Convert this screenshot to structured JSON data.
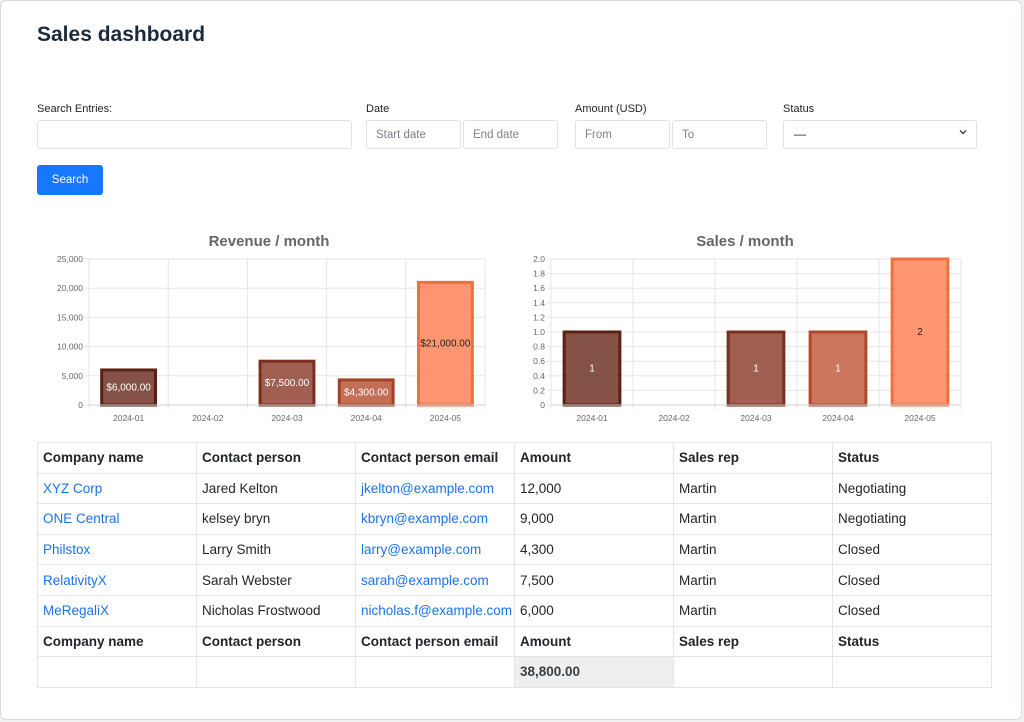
{
  "page": {
    "title": "Sales dashboard"
  },
  "filters": {
    "search": {
      "label": "Search Entries:",
      "value": "",
      "placeholder": ""
    },
    "date": {
      "label": "Date",
      "start_placeholder": "Start date",
      "end_placeholder": "End date"
    },
    "amount": {
      "label": "Amount (USD)",
      "from_placeholder": "From",
      "to_placeholder": "To"
    },
    "status": {
      "label": "Status",
      "selected": "—"
    },
    "search_button": "Search"
  },
  "chart_data": [
    {
      "type": "bar",
      "title": "Revenue / month",
      "categories": [
        "2024-01",
        "2024-02",
        "2024-03",
        "2024-04",
        "2024-05"
      ],
      "values": [
        6000,
        0,
        7500,
        4300,
        21000
      ],
      "data_labels": [
        "$6,000.00",
        "",
        "$7,500.00",
        "$4,300.00",
        "$21,000.00"
      ],
      "yticks": [
        "0",
        "5,000",
        "10,000",
        "15,000",
        "20,000",
        "25,000"
      ],
      "ylim": [
        0,
        25000
      ],
      "colors": [
        "#6e3426",
        "#000000",
        "#8f4331",
        "#b9553a",
        "#ff8458"
      ],
      "label_colors": [
        "#ffffff",
        "#ffffff",
        "#ffffff",
        "#ffffff",
        "#222222"
      ],
      "grid": true
    },
    {
      "type": "bar",
      "title": "Sales / month",
      "categories": [
        "2024-01",
        "2024-02",
        "2024-03",
        "2024-04",
        "2024-05"
      ],
      "values": [
        1,
        0,
        1,
        1,
        2
      ],
      "data_labels": [
        "1",
        "",
        "1",
        "1",
        "2"
      ],
      "yticks": [
        "0",
        "0.2",
        "0.4",
        "0.6",
        "0.8",
        "1.0",
        "1.2",
        "1.4",
        "1.6",
        "1.8",
        "2.0"
      ],
      "ylim": [
        0,
        2
      ],
      "colors": [
        "#6e3426",
        "#000000",
        "#8f4331",
        "#c45e43",
        "#ff8458"
      ],
      "label_colors": [
        "#ffffff",
        "#ffffff",
        "#ffffff",
        "#ffffff",
        "#222222"
      ],
      "grid": true
    }
  ],
  "table": {
    "headers": [
      "Company name",
      "Contact person",
      "Contact person email",
      "Amount",
      "Sales rep",
      "Status"
    ],
    "rows": [
      [
        "XYZ Corp",
        "Jared Kelton",
        "jkelton@example.com",
        "12,000",
        "Martin",
        "Negotiating"
      ],
      [
        "ONE Central",
        "kelsey bryn",
        "kbryn@example.com",
        "9,000",
        "Martin",
        "Negotiating"
      ],
      [
        "Philstox",
        "Larry Smith",
        "larry@example.com",
        "4,300",
        "Martin",
        "Closed"
      ],
      [
        "RelativityX",
        "Sarah Webster",
        "sarah@example.com",
        "7,500",
        "Martin",
        "Closed"
      ],
      [
        "MeRegaliX",
        "Nicholas Frostwood",
        "nicholas.f@example.com",
        "6,000",
        "Martin",
        "Closed"
      ]
    ],
    "total": "38,800.00"
  },
  "colors": {
    "accent": "#1677ff",
    "link": "#1a73e8"
  }
}
